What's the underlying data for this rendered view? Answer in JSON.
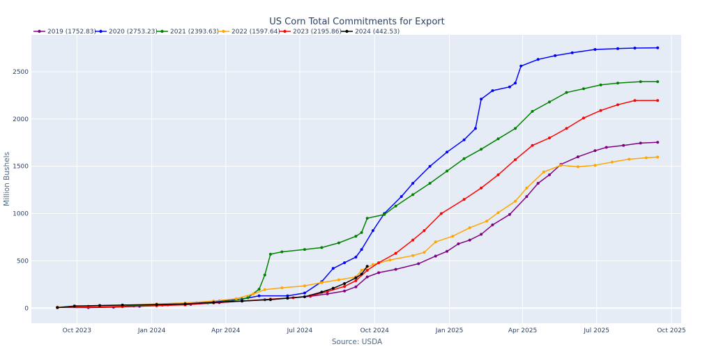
{
  "chart_data": {
    "type": "line",
    "title": "US Corn Total Commitments for Export",
    "xlabel": "Source: USDA",
    "ylabel": "Million Bushels",
    "x_ticks": [
      "Oct 2023",
      "Jan 2024",
      "Apr 2024",
      "Jul 2024",
      "Oct 2024",
      "Jan 2025",
      "Apr 2025",
      "Jul 2025",
      "Oct 2025"
    ],
    "x_tick_dates": [
      "2023-10-01",
      "2024-01-01",
      "2024-04-01",
      "2024-07-01",
      "2024-10-01",
      "2025-01-01",
      "2025-04-01",
      "2025-07-01",
      "2025-10-01"
    ],
    "y_ticks": [
      0,
      500,
      1000,
      1500,
      2000,
      2500
    ],
    "xlim": [
      "2023-08-06",
      "2025-10-13"
    ],
    "ylim": [
      -160,
      2890
    ],
    "background": "#e5ecf6",
    "grid": true,
    "legend_position": "top-left",
    "series": [
      {
        "name": "2019 (1752.83)",
        "color": "#800080",
        "points": [
          [
            "2023-09-07",
            10
          ],
          [
            "2023-10-01",
            15
          ],
          [
            "2023-11-15",
            18
          ],
          [
            "2023-12-10",
            22
          ],
          [
            "2024-01-14",
            32
          ],
          [
            "2024-02-18",
            40
          ],
          [
            "2024-03-24",
            58
          ],
          [
            "2024-04-21",
            75
          ],
          [
            "2024-05-19",
            88
          ],
          [
            "2024-06-16",
            105
          ],
          [
            "2024-07-14",
            125
          ],
          [
            "2024-08-04",
            150
          ],
          [
            "2024-08-25",
            180
          ],
          [
            "2024-09-08",
            225
          ],
          [
            "2024-09-22",
            330
          ],
          [
            "2024-10-06",
            375
          ],
          [
            "2024-10-27",
            410
          ],
          [
            "2024-11-24",
            470
          ],
          [
            "2024-12-15",
            550
          ],
          [
            "2024-12-29",
            600
          ],
          [
            "2025-01-12",
            680
          ],
          [
            "2025-01-26",
            720
          ],
          [
            "2025-02-09",
            780
          ],
          [
            "2025-02-23",
            880
          ],
          [
            "2025-03-16",
            990
          ],
          [
            "2025-04-06",
            1180
          ],
          [
            "2025-04-20",
            1320
          ],
          [
            "2025-05-04",
            1410
          ],
          [
            "2025-05-18",
            1520
          ],
          [
            "2025-06-08",
            1600
          ],
          [
            "2025-06-29",
            1665
          ],
          [
            "2025-07-13",
            1700
          ],
          [
            "2025-08-03",
            1720
          ],
          [
            "2025-08-24",
            1745
          ],
          [
            "2025-09-14",
            1753
          ]
        ]
      },
      {
        "name": "2020 (2753.23)",
        "color": "#0000ff",
        "points": [
          [
            "2023-09-07",
            8
          ],
          [
            "2023-10-15",
            6
          ],
          [
            "2023-11-15",
            10
          ],
          [
            "2023-12-17",
            20
          ],
          [
            "2024-01-21",
            35
          ],
          [
            "2024-02-25",
            55
          ],
          [
            "2024-03-24",
            75
          ],
          [
            "2024-04-21",
            95
          ],
          [
            "2024-05-12",
            130
          ],
          [
            "2024-06-16",
            130
          ],
          [
            "2024-07-07",
            160
          ],
          [
            "2024-07-28",
            280
          ],
          [
            "2024-08-11",
            420
          ],
          [
            "2024-08-25",
            480
          ],
          [
            "2024-09-08",
            540
          ],
          [
            "2024-09-15",
            620
          ],
          [
            "2024-09-29",
            820
          ],
          [
            "2024-10-13",
            1000
          ],
          [
            "2024-11-03",
            1180
          ],
          [
            "2024-11-17",
            1320
          ],
          [
            "2024-12-08",
            1500
          ],
          [
            "2024-12-29",
            1650
          ],
          [
            "2025-01-19",
            1780
          ],
          [
            "2025-02-02",
            1900
          ],
          [
            "2025-02-09",
            2210
          ],
          [
            "2025-02-23",
            2300
          ],
          [
            "2025-03-16",
            2340
          ],
          [
            "2025-03-23",
            2380
          ],
          [
            "2025-03-30",
            2560
          ],
          [
            "2025-04-20",
            2630
          ],
          [
            "2025-05-11",
            2670
          ],
          [
            "2025-06-01",
            2700
          ],
          [
            "2025-06-29",
            2735
          ],
          [
            "2025-07-27",
            2745
          ],
          [
            "2025-08-17",
            2750
          ],
          [
            "2025-09-14",
            2753
          ]
        ]
      },
      {
        "name": "2021 (2393.63)",
        "color": "#008000",
        "points": [
          [
            "2023-09-07",
            10
          ],
          [
            "2023-10-15",
            20
          ],
          [
            "2023-11-26",
            22
          ],
          [
            "2024-01-07",
            30
          ],
          [
            "2024-02-11",
            35
          ],
          [
            "2024-03-10",
            55
          ],
          [
            "2024-04-07",
            75
          ],
          [
            "2024-04-28",
            110
          ],
          [
            "2024-05-12",
            200
          ],
          [
            "2024-05-19",
            350
          ],
          [
            "2024-05-26",
            570
          ],
          [
            "2024-06-09",
            595
          ],
          [
            "2024-07-07",
            620
          ],
          [
            "2024-07-28",
            640
          ],
          [
            "2024-08-18",
            690
          ],
          [
            "2024-09-08",
            760
          ],
          [
            "2024-09-15",
            800
          ],
          [
            "2024-09-22",
            950
          ],
          [
            "2024-10-13",
            990
          ],
          [
            "2024-10-27",
            1080
          ],
          [
            "2024-11-17",
            1200
          ],
          [
            "2024-12-08",
            1320
          ],
          [
            "2024-12-29",
            1450
          ],
          [
            "2025-01-19",
            1580
          ],
          [
            "2025-02-09",
            1680
          ],
          [
            "2025-03-02",
            1790
          ],
          [
            "2025-03-23",
            1900
          ],
          [
            "2025-04-13",
            2080
          ],
          [
            "2025-05-04",
            2180
          ],
          [
            "2025-05-25",
            2280
          ],
          [
            "2025-06-15",
            2320
          ],
          [
            "2025-07-06",
            2360
          ],
          [
            "2025-07-27",
            2380
          ],
          [
            "2025-08-24",
            2395
          ],
          [
            "2025-09-14",
            2394
          ]
        ]
      },
      {
        "name": "2022 (1597.64)",
        "color": "#ffa500",
        "points": [
          [
            "2023-09-07",
            10
          ],
          [
            "2023-10-15",
            20
          ],
          [
            "2023-11-26",
            30
          ],
          [
            "2024-01-07",
            45
          ],
          [
            "2024-02-11",
            55
          ],
          [
            "2024-03-17",
            75
          ],
          [
            "2024-04-14",
            100
          ],
          [
            "2024-05-05",
            150
          ],
          [
            "2024-05-19",
            195
          ],
          [
            "2024-06-09",
            215
          ],
          [
            "2024-07-07",
            235
          ],
          [
            "2024-07-28",
            270
          ],
          [
            "2024-08-18",
            300
          ],
          [
            "2024-09-08",
            330
          ],
          [
            "2024-09-15",
            400
          ],
          [
            "2024-09-29",
            460
          ],
          [
            "2024-10-20",
            510
          ],
          [
            "2024-11-17",
            555
          ],
          [
            "2024-12-01",
            590
          ],
          [
            "2024-12-15",
            700
          ],
          [
            "2025-01-05",
            760
          ],
          [
            "2025-01-26",
            850
          ],
          [
            "2025-02-16",
            920
          ],
          [
            "2025-03-02",
            1010
          ],
          [
            "2025-03-23",
            1130
          ],
          [
            "2025-04-06",
            1270
          ],
          [
            "2025-04-27",
            1440
          ],
          [
            "2025-05-18",
            1510
          ],
          [
            "2025-06-08",
            1495
          ],
          [
            "2025-06-29",
            1510
          ],
          [
            "2025-07-20",
            1545
          ],
          [
            "2025-08-10",
            1575
          ],
          [
            "2025-08-31",
            1590
          ],
          [
            "2025-09-14",
            1598
          ]
        ]
      },
      {
        "name": "2023 (2195.86)",
        "color": "#ff0000",
        "points": [
          [
            "2023-09-07",
            8
          ],
          [
            "2023-10-15",
            10
          ],
          [
            "2023-11-26",
            15
          ],
          [
            "2024-01-07",
            25
          ],
          [
            "2024-02-11",
            35
          ],
          [
            "2024-03-17",
            55
          ],
          [
            "2024-04-21",
            75
          ],
          [
            "2024-05-26",
            95
          ],
          [
            "2024-06-23",
            110
          ],
          [
            "2024-07-14",
            130
          ],
          [
            "2024-08-04",
            175
          ],
          [
            "2024-08-25",
            230
          ],
          [
            "2024-09-08",
            290
          ],
          [
            "2024-09-22",
            400
          ],
          [
            "2024-10-06",
            480
          ],
          [
            "2024-10-27",
            580
          ],
          [
            "2024-11-17",
            720
          ],
          [
            "2024-12-01",
            820
          ],
          [
            "2024-12-22",
            1000
          ],
          [
            "2025-01-19",
            1150
          ],
          [
            "2025-02-09",
            1270
          ],
          [
            "2025-03-02",
            1410
          ],
          [
            "2025-03-23",
            1570
          ],
          [
            "2025-04-13",
            1720
          ],
          [
            "2025-05-04",
            1800
          ],
          [
            "2025-05-25",
            1900
          ],
          [
            "2025-06-15",
            2010
          ],
          [
            "2025-07-06",
            2090
          ],
          [
            "2025-07-27",
            2150
          ],
          [
            "2025-08-17",
            2195
          ],
          [
            "2025-09-14",
            2196
          ]
        ]
      },
      {
        "name": "2024 (442.53)",
        "color": "#000000",
        "points": [
          [
            "2023-09-07",
            5
          ],
          [
            "2023-09-28",
            22
          ],
          [
            "2023-10-29",
            28
          ],
          [
            "2023-11-26",
            32
          ],
          [
            "2024-01-07",
            38
          ],
          [
            "2024-02-11",
            45
          ],
          [
            "2024-03-17",
            60
          ],
          [
            "2024-04-21",
            75
          ],
          [
            "2024-05-26",
            90
          ],
          [
            "2024-06-16",
            105
          ],
          [
            "2024-07-07",
            120
          ],
          [
            "2024-07-28",
            170
          ],
          [
            "2024-08-11",
            210
          ],
          [
            "2024-08-25",
            260
          ],
          [
            "2024-09-08",
            320
          ],
          [
            "2024-09-15",
            360
          ],
          [
            "2024-09-22",
            443
          ]
        ]
      }
    ]
  },
  "source": "Source: USDA"
}
